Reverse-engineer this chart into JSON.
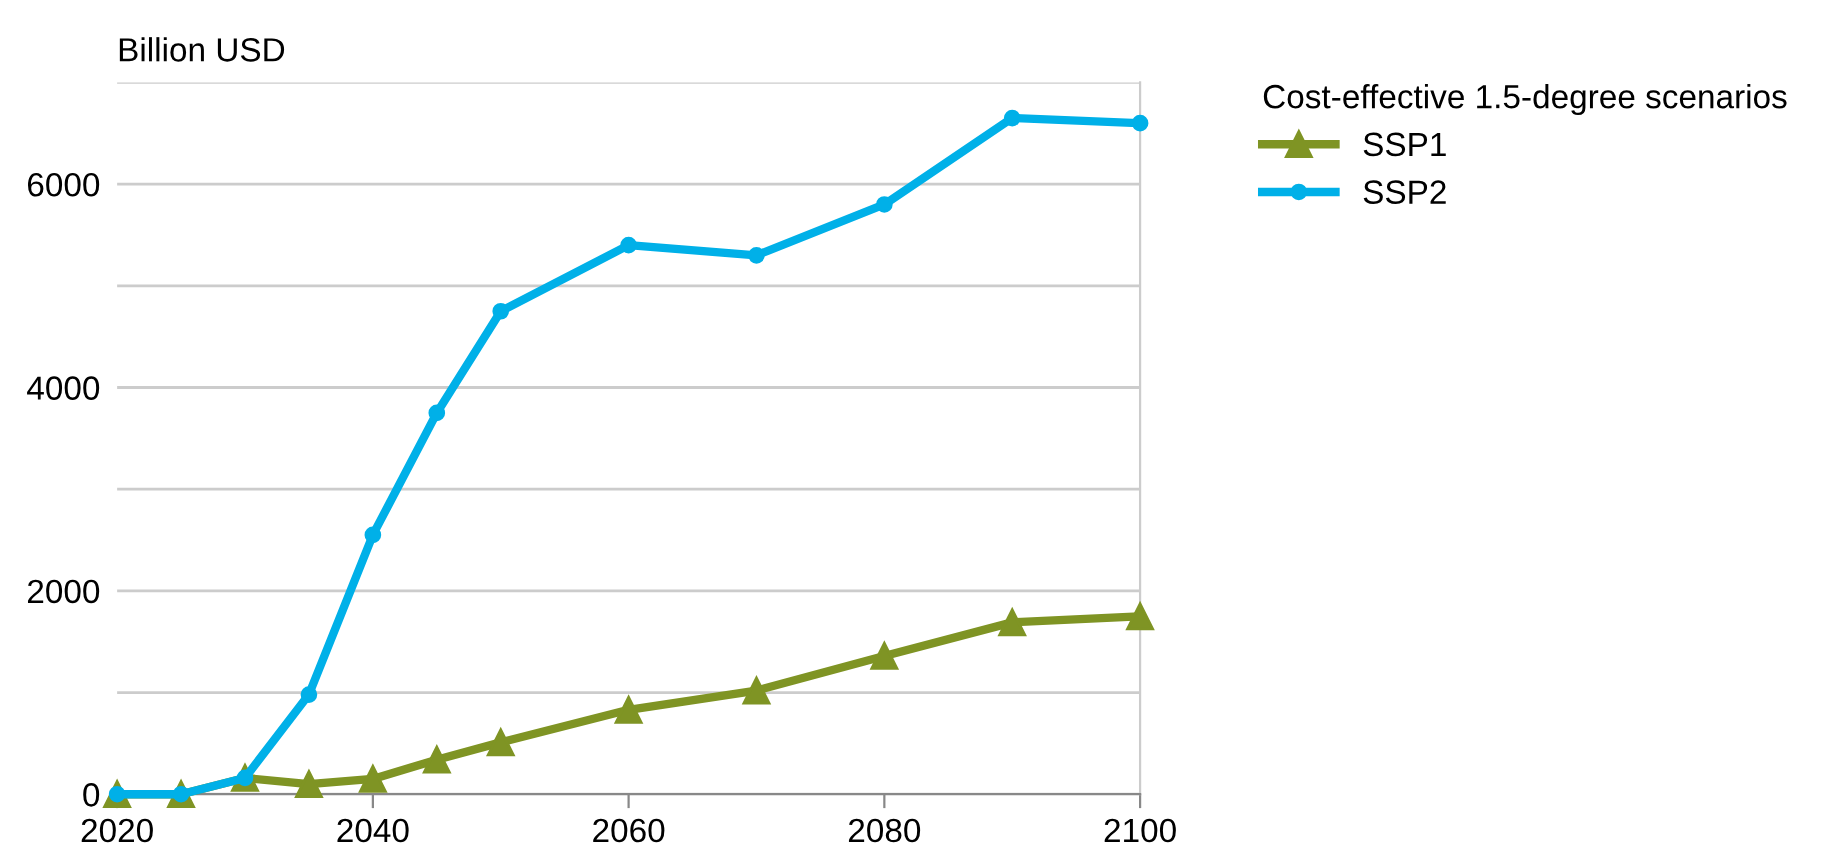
{
  "chart_data": {
    "type": "line",
    "ylabel": "Billion USD",
    "legend_title": "Cost-effective 1.5-degree scenarios",
    "x": [
      2020,
      2025,
      2030,
      2035,
      2040,
      2045,
      2050,
      2060,
      2070,
      2080,
      2090,
      2100
    ],
    "series": [
      {
        "name": "SSP1",
        "color": "#7f9424",
        "marker": "triangle",
        "values": [
          0,
          0,
          160,
          100,
          150,
          340,
          510,
          830,
          1020,
          1360,
          1690,
          1750
        ]
      },
      {
        "name": "SSP2",
        "color": "#00b0e8",
        "marker": "circle",
        "values": [
          0,
          0,
          160,
          980,
          2550,
          3750,
          4750,
          5400,
          5300,
          5800,
          6650,
          6600
        ]
      }
    ],
    "xlim": [
      2020,
      2100
    ],
    "xticks": [
      2020,
      2040,
      2060,
      2080,
      2100
    ],
    "ylim": [
      0,
      7000
    ],
    "yticks": [
      0,
      {
        "value": 1000,
        "label": null
      },
      2000,
      {
        "value": 3000,
        "label": null
      },
      4000,
      {
        "value": 5000,
        "label": null
      },
      6000,
      {
        "value": 7000,
        "label": null
      }
    ],
    "grid": "y",
    "legend": "top right",
    "line_style": "solid"
  }
}
